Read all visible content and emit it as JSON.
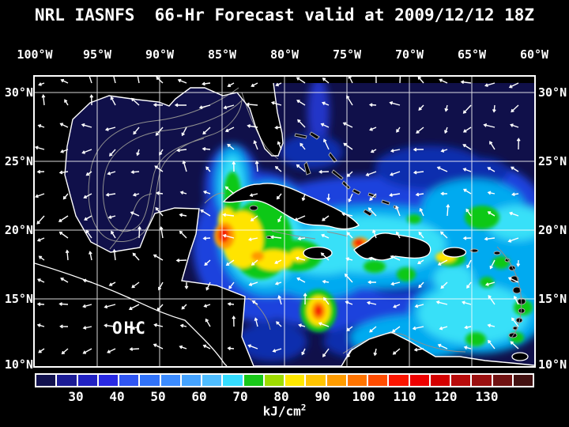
{
  "title": "NRL IASNFS  66-Hr Forecast valid at 2009/12/12 18Z",
  "map": {
    "label": "OHC",
    "lon_labels": [
      "100°W",
      "95°W",
      "90°W",
      "85°W",
      "80°W",
      "75°W",
      "70°W",
      "65°W",
      "60°W"
    ],
    "lat_labels_left": [
      "30°N",
      "25°N",
      "20°N",
      "15°N",
      "10°N"
    ],
    "lat_labels_right": [
      "30°N",
      "25°N",
      "20°N",
      "15°N",
      "10°N"
    ]
  },
  "colorbar": {
    "unit_base": "kJ/cm",
    "unit_exp": "2",
    "tick_labels": [
      "30",
      "40",
      "50",
      "60",
      "70",
      "80",
      "90",
      "100",
      "110",
      "120",
      "130"
    ],
    "value_min": 20,
    "value_max": 140,
    "segment_step": 5,
    "segment_colors": [
      "#11114e",
      "#1c1c96",
      "#2121c3",
      "#2929e4",
      "#2f55f2",
      "#3173fa",
      "#3c8cff",
      "#45a3ff",
      "#4fbdff",
      "#35ddff",
      "#19c819",
      "#9fdc00",
      "#ffe800",
      "#ffc400",
      "#ff9c00",
      "#ff7400",
      "#ff4c00",
      "#fb1500",
      "#ee0000",
      "#d40000",
      "#b80b0b",
      "#9b1010",
      "#701212",
      "#421111"
    ]
  },
  "colors": {
    "background": "#000000",
    "ocean_base": "#10104a",
    "coastline": "#ffffff",
    "bathymetry_contour": "#8f8f8f",
    "grid": "#ffffff",
    "vector_arrow": "#ffffff"
  }
}
